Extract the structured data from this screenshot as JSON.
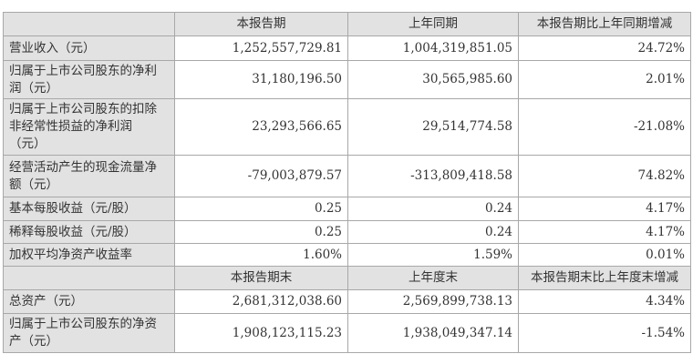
{
  "header1": [
    "",
    "本报告期",
    "上年同期",
    "本报告期比上年同期增减"
  ],
  "rows1": [
    {
      "label": [
        "营业收入（元）"
      ],
      "current": "1,252,557,729.81",
      "prior": "1,004,319,851.05",
      "change": "24.72%"
    },
    {
      "label": [
        "归属于上市公司股东的净利",
        "润（元）"
      ],
      "current": "31,180,196.50",
      "prior": "30,565,985.60",
      "change": "2.01%"
    },
    {
      "label": [
        "归属于上市公司股东的扣除",
        "非经常性损益的净利润",
        "（元）"
      ],
      "current": "23,293,566.65",
      "prior": "29,514,774.58",
      "change": "-21.08%"
    },
    {
      "label": [
        "经营活动产生的现金流量净",
        "额（元）"
      ],
      "current": "-79,003,879.57",
      "prior": "-313,809,418.58",
      "change": "74.82%"
    },
    {
      "label": [
        "基本每股收益（元/股）"
      ],
      "current": "0.25",
      "prior": "0.24",
      "change": "4.17%"
    },
    {
      "label": [
        "稀释每股收益（元/股）"
      ],
      "current": "0.25",
      "prior": "0.24",
      "change": "4.17%"
    },
    {
      "label": [
        "加权平均净资产收益率"
      ],
      "current": "1.60%",
      "prior": "1.59%",
      "change": "0.01%"
    }
  ],
  "header2": [
    "",
    "本报告期末",
    "上年度末",
    "本报告期末比上年度末增减"
  ],
  "rows2": [
    {
      "label": [
        "总资产（元）"
      ],
      "current": "2,681,312,038.60",
      "prior": "2,569,899,738.13",
      "change": "4.34%"
    },
    {
      "label": [
        "归属于上市公司股东的净资",
        "产（元）"
      ],
      "current": "1,908,123,115.23",
      "prior": "1,938,049,347.14",
      "change": "-1.54%"
    }
  ]
}
